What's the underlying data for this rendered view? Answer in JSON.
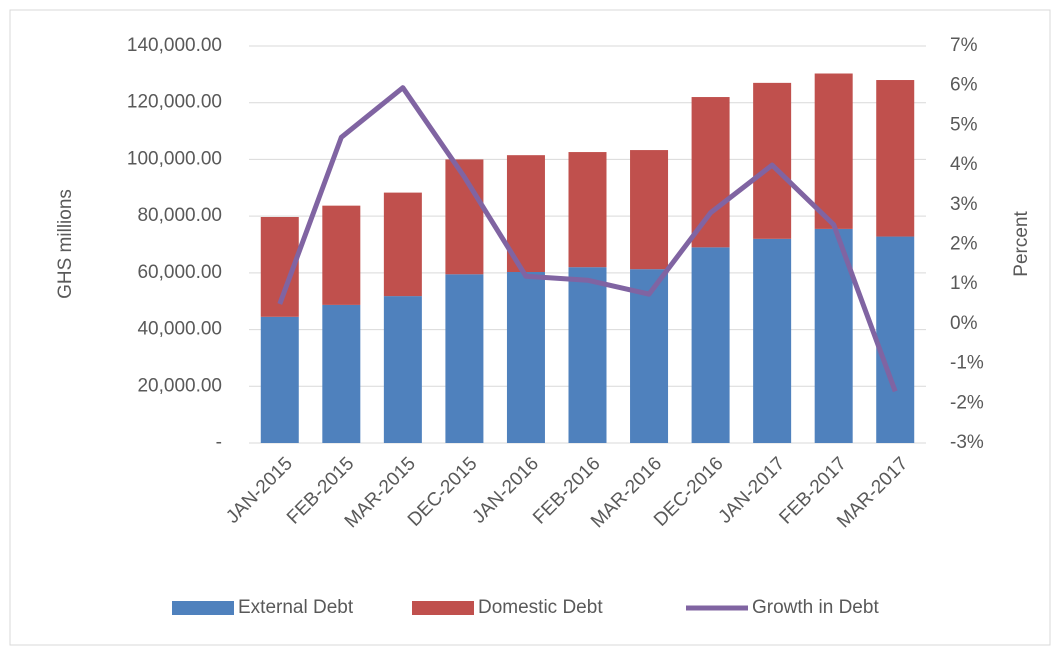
{
  "chart_data": {
    "type": "bar",
    "categories": [
      "JAN-2015",
      "FEB-2015",
      "MAR-2015",
      "DEC-2015",
      "JAN-2016",
      "FEB-2016",
      "MAR-2016",
      "DEC-2016",
      "JAN-2017",
      "FEB-2017",
      "MAR-2017"
    ],
    "series": [
      {
        "name": "External Debt",
        "color": "#4f81bd",
        "values": [
          44500,
          48700,
          51800,
          59500,
          60300,
          62000,
          61300,
          69000,
          72000,
          75500,
          72800
        ]
      },
      {
        "name": "Domestic Debt",
        "color": "#c0504d",
        "values": [
          35200,
          35000,
          36500,
          40500,
          41200,
          40600,
          42000,
          53000,
          55000,
          54800,
          55200
        ]
      },
      {
        "name": "Growth in Debt",
        "color": "#8064a2",
        "type": "line",
        "axis": "y2",
        "values": [
          0.5,
          4.7,
          5.95,
          3.7,
          1.2,
          1.1,
          0.75,
          2.8,
          4.0,
          2.5,
          -1.7
        ]
      }
    ],
    "stacked": true,
    "ylabel": "GHS millions",
    "y2label": "Percent",
    "ylim": [
      0,
      140000
    ],
    "yticks": [
      {
        "value": 0,
        "label": "-"
      },
      {
        "value": 20000,
        "label": "20,000.00"
      },
      {
        "value": 40000,
        "label": "40,000.00"
      },
      {
        "value": 60000,
        "label": "60,000.00"
      },
      {
        "value": 80000,
        "label": "80,000.00"
      },
      {
        "value": 100000,
        "label": "100,000.00"
      },
      {
        "value": 120000,
        "label": "120,000.00"
      },
      {
        "value": 140000,
        "label": "140,000.00"
      }
    ],
    "y2lim": [
      -3,
      7
    ],
    "y2ticks": [
      {
        "value": -3,
        "label": "-3%"
      },
      {
        "value": -2,
        "label": "-2%"
      },
      {
        "value": -1,
        "label": "-1%"
      },
      {
        "value": 0,
        "label": "0%"
      },
      {
        "value": 1,
        "label": "1%"
      },
      {
        "value": 2,
        "label": "2%"
      },
      {
        "value": 3,
        "label": "3%"
      },
      {
        "value": 4,
        "label": "4%"
      },
      {
        "value": 5,
        "label": "5%"
      },
      {
        "value": 6,
        "label": "6%"
      },
      {
        "value": 7,
        "label": "7%"
      }
    ],
    "grid": true,
    "legend": "bottom"
  }
}
